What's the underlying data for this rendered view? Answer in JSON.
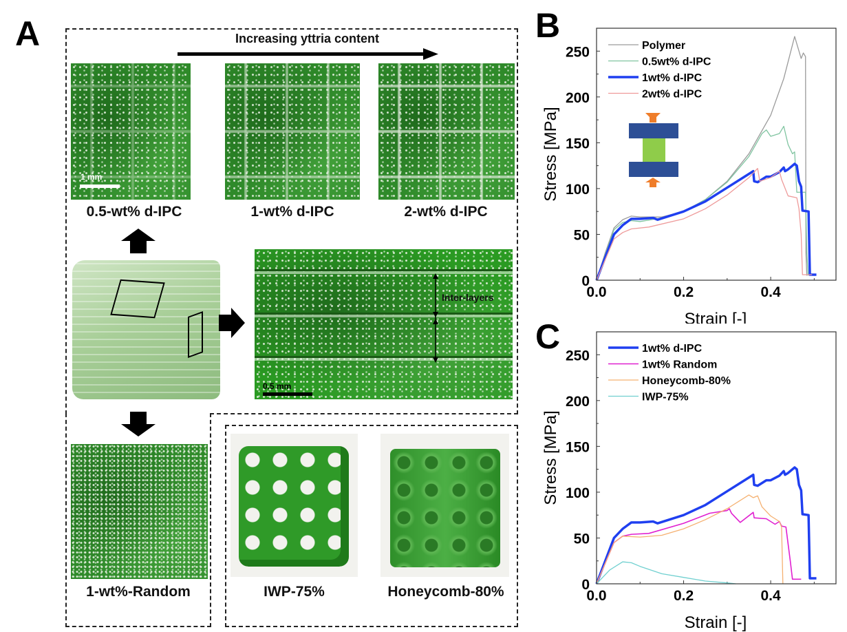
{
  "panel_a": {
    "letter": "A",
    "trend_label": "Increasing yttria content",
    "photos": [
      {
        "caption": "0.5-wt% d-IPC",
        "scale_bar": "1 mm"
      },
      {
        "caption": "1-wt% d-IPC"
      },
      {
        "caption": "2-wt% d-IPC"
      }
    ],
    "interlayer": {
      "annotation": "Inter-layers",
      "scale_bar": "0.5 mm"
    },
    "random_caption": "1-wt%-Random",
    "lattices": [
      {
        "caption": "IWP-75%"
      },
      {
        "caption": "Honeycomb-80%"
      }
    ]
  },
  "chart_data": [
    {
      "panel": "B",
      "type": "line",
      "xlabel": "Strain [-]",
      "ylabel": "Stress [MPa]",
      "xlim": [
        0,
        0.55
      ],
      "ylim": [
        0,
        275
      ],
      "xticks": [
        "0.0",
        "0.2",
        "0.4"
      ],
      "xtick_values": [
        0,
        0.2,
        0.4
      ],
      "yticks": [
        "0",
        "50",
        "100",
        "150",
        "200",
        "250"
      ],
      "ytick_values": [
        0,
        50,
        100,
        150,
        200,
        250
      ],
      "legend_position": "top-left",
      "series": [
        {
          "name": "Polymer",
          "color": "#9a9a9a",
          "width": 1.3,
          "points": [
            [
              0,
              0
            ],
            [
              0.02,
              30
            ],
            [
              0.04,
              57
            ],
            [
              0.06,
              66
            ],
            [
              0.08,
              70
            ],
            [
              0.1,
              69
            ],
            [
              0.15,
              69
            ],
            [
              0.2,
              75
            ],
            [
              0.25,
              88
            ],
            [
              0.3,
              108
            ],
            [
              0.35,
              138
            ],
            [
              0.4,
              180
            ],
            [
              0.43,
              220
            ],
            [
              0.455,
              266
            ],
            [
              0.46,
              258
            ],
            [
              0.465,
              250
            ],
            [
              0.47,
              242
            ],
            [
              0.475,
              248
            ],
            [
              0.48,
              244
            ],
            [
              0.481,
              30
            ],
            [
              0.483,
              5
            ]
          ]
        },
        {
          "name": "0.5wt% d-IPC",
          "color": "#7fc4a0",
          "width": 1.3,
          "points": [
            [
              0,
              0
            ],
            [
              0.02,
              28
            ],
            [
              0.04,
              55
            ],
            [
              0.06,
              63
            ],
            [
              0.08,
              65
            ],
            [
              0.1,
              64
            ],
            [
              0.15,
              68
            ],
            [
              0.2,
              75
            ],
            [
              0.25,
              88
            ],
            [
              0.3,
              107
            ],
            [
              0.35,
              135
            ],
            [
              0.38,
              160
            ],
            [
              0.39,
              164
            ],
            [
              0.4,
              157
            ],
            [
              0.42,
              160
            ],
            [
              0.43,
              168
            ],
            [
              0.44,
              148
            ],
            [
              0.45,
              138
            ],
            [
              0.455,
              140
            ],
            [
              0.46,
              96
            ],
            [
              0.48,
              96
            ],
            [
              0.483,
              30
            ],
            [
              0.486,
              5
            ]
          ]
        },
        {
          "name": "1wt% d-IPC",
          "color": "#1f3ff0",
          "width": 3.5,
          "points": [
            [
              0,
              0
            ],
            [
              0.02,
              25
            ],
            [
              0.04,
              50
            ],
            [
              0.06,
              60
            ],
            [
              0.08,
              67
            ],
            [
              0.1,
              67
            ],
            [
              0.13,
              68
            ],
            [
              0.14,
              66
            ],
            [
              0.2,
              75
            ],
            [
              0.25,
              86
            ],
            [
              0.3,
              101
            ],
            [
              0.34,
              113
            ],
            [
              0.36,
              119
            ],
            [
              0.362,
              108
            ],
            [
              0.37,
              107
            ],
            [
              0.39,
              113
            ],
            [
              0.4,
              113
            ],
            [
              0.42,
              118
            ],
            [
              0.43,
              123
            ],
            [
              0.433,
              119
            ],
            [
              0.44,
              121
            ],
            [
              0.455,
              127
            ],
            [
              0.46,
              125
            ],
            [
              0.465,
              108
            ],
            [
              0.47,
              102
            ],
            [
              0.473,
              76
            ],
            [
              0.487,
              75
            ],
            [
              0.49,
              6
            ],
            [
              0.505,
              6
            ]
          ]
        },
        {
          "name": "2wt% d-IPC",
          "color": "#ee9a9a",
          "width": 1.3,
          "points": [
            [
              0,
              0
            ],
            [
              0.04,
              45
            ],
            [
              0.06,
              52
            ],
            [
              0.08,
              56
            ],
            [
              0.12,
              58
            ],
            [
              0.2,
              67
            ],
            [
              0.25,
              78
            ],
            [
              0.3,
              93
            ],
            [
              0.35,
              112
            ],
            [
              0.37,
              122
            ],
            [
              0.375,
              108
            ],
            [
              0.4,
              112
            ],
            [
              0.42,
              119
            ],
            [
              0.425,
              110
            ],
            [
              0.43,
              104
            ],
            [
              0.44,
              92
            ],
            [
              0.46,
              90
            ],
            [
              0.465,
              78
            ],
            [
              0.47,
              50
            ],
            [
              0.473,
              6
            ],
            [
              0.495,
              6
            ]
          ]
        }
      ]
    },
    {
      "panel": "C",
      "type": "line",
      "xlabel": "Strain [-]",
      "ylabel": "Stress [MPa]",
      "xlim": [
        0,
        0.55
      ],
      "ylim": [
        0,
        275
      ],
      "xticks": [
        "0.0",
        "0.2",
        "0.4"
      ],
      "xtick_values": [
        0,
        0.2,
        0.4
      ],
      "yticks": [
        "0",
        "50",
        "100",
        "150",
        "200",
        "250"
      ],
      "ytick_values": [
        0,
        50,
        100,
        150,
        200,
        250
      ],
      "legend_position": "top-left",
      "series": [
        {
          "name": "1wt% d-IPC",
          "color": "#1f3ff0",
          "width": 3.5,
          "points": [
            [
              0,
              0
            ],
            [
              0.02,
              25
            ],
            [
              0.04,
              50
            ],
            [
              0.06,
              60
            ],
            [
              0.08,
              67
            ],
            [
              0.1,
              67
            ],
            [
              0.13,
              68
            ],
            [
              0.14,
              66
            ],
            [
              0.2,
              75
            ],
            [
              0.25,
              86
            ],
            [
              0.3,
              101
            ],
            [
              0.34,
              113
            ],
            [
              0.36,
              119
            ],
            [
              0.362,
              108
            ],
            [
              0.37,
              107
            ],
            [
              0.39,
              113
            ],
            [
              0.4,
              113
            ],
            [
              0.42,
              118
            ],
            [
              0.43,
              123
            ],
            [
              0.433,
              119
            ],
            [
              0.44,
              121
            ],
            [
              0.455,
              127
            ],
            [
              0.46,
              125
            ],
            [
              0.465,
              108
            ],
            [
              0.47,
              102
            ],
            [
              0.473,
              76
            ],
            [
              0.487,
              75
            ],
            [
              0.49,
              6
            ],
            [
              0.505,
              6
            ]
          ]
        },
        {
          "name": "1wt% Random",
          "color": "#e020d0",
          "width": 1.6,
          "points": [
            [
              0,
              0
            ],
            [
              0.04,
              45
            ],
            [
              0.06,
              52
            ],
            [
              0.08,
              54
            ],
            [
              0.12,
              55
            ],
            [
              0.2,
              66
            ],
            [
              0.26,
              77
            ],
            [
              0.3,
              80
            ],
            [
              0.305,
              82
            ],
            [
              0.31,
              77
            ],
            [
              0.33,
              67
            ],
            [
              0.36,
              78
            ],
            [
              0.362,
              72
            ],
            [
              0.39,
              71
            ],
            [
              0.41,
              65
            ],
            [
              0.42,
              68
            ],
            [
              0.425,
              63
            ],
            [
              0.435,
              62
            ],
            [
              0.445,
              25
            ],
            [
              0.45,
              5
            ],
            [
              0.47,
              5
            ]
          ]
        },
        {
          "name": "Honeycomb-80%",
          "color": "#f5b070",
          "width": 1.3,
          "points": [
            [
              0,
              0
            ],
            [
              0.04,
              45
            ],
            [
              0.06,
              52
            ],
            [
              0.1,
              51
            ],
            [
              0.15,
              53
            ],
            [
              0.2,
              60
            ],
            [
              0.25,
              70
            ],
            [
              0.3,
              82
            ],
            [
              0.35,
              97
            ],
            [
              0.36,
              94
            ],
            [
              0.37,
              96
            ],
            [
              0.38,
              84
            ],
            [
              0.4,
              74
            ],
            [
              0.42,
              68
            ],
            [
              0.425,
              62
            ],
            [
              0.428,
              0
            ]
          ]
        },
        {
          "name": "IWP-75%",
          "color": "#70d0d0",
          "width": 1.3,
          "points": [
            [
              0,
              0
            ],
            [
              0.03,
              15
            ],
            [
              0.06,
              24
            ],
            [
              0.08,
              23
            ],
            [
              0.1,
              19
            ],
            [
              0.15,
              11
            ],
            [
              0.2,
              7
            ],
            [
              0.25,
              3
            ],
            [
              0.3,
              1
            ],
            [
              0.32,
              0
            ]
          ]
        }
      ]
    }
  ]
}
